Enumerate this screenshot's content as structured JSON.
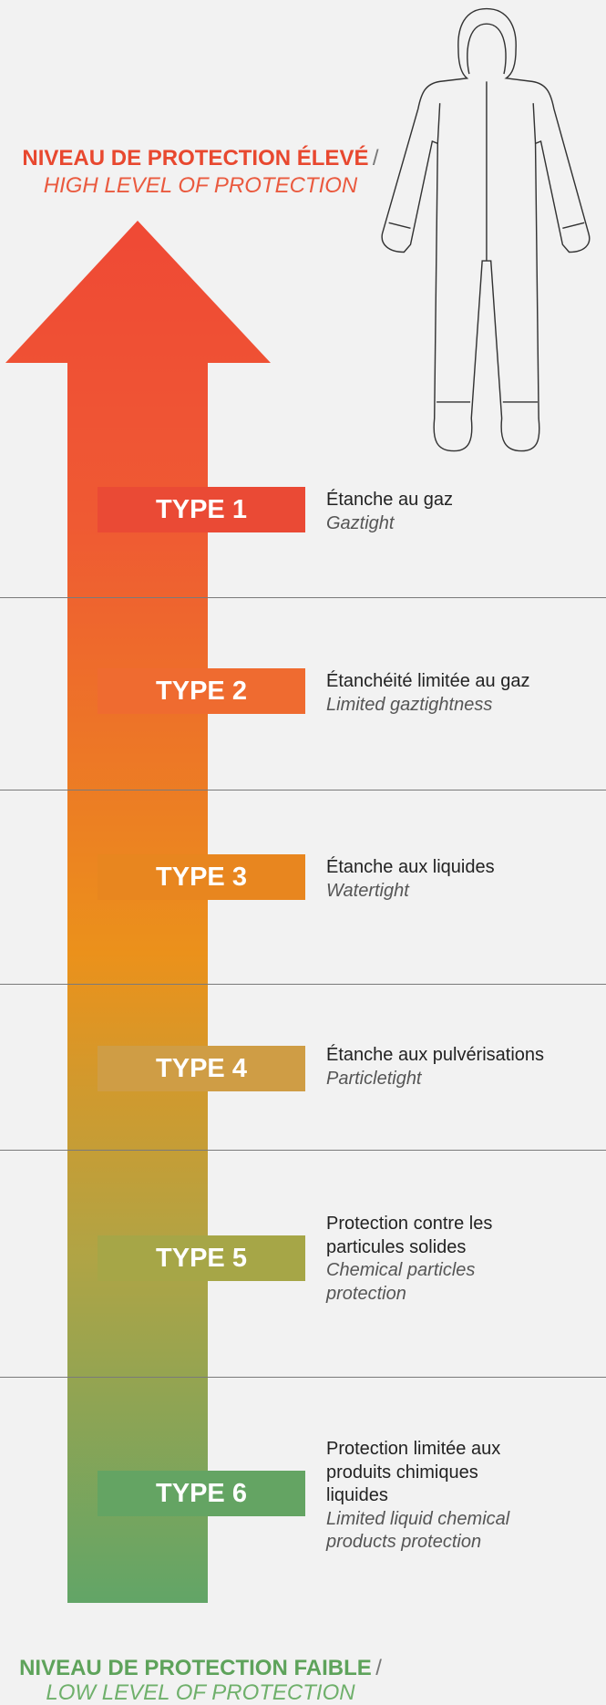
{
  "header": {
    "title": "NIVEAU DE PROTECTION ÉLEVÉ",
    "separator": "/",
    "subtitle": "HIGH LEVEL OF PROTECTION"
  },
  "types": [
    {
      "label": "TYPE 1",
      "fr_lines": [
        "Étanche au gaz"
      ],
      "en_lines": [
        "Gaztight"
      ]
    },
    {
      "label": "TYPE 2",
      "fr_lines": [
        "Étanchéité limitée au gaz"
      ],
      "en_lines": [
        "Limited gaztightness"
      ]
    },
    {
      "label": "TYPE 3",
      "fr_lines": [
        "Étanche aux liquides"
      ],
      "en_lines": [
        "Watertight"
      ]
    },
    {
      "label": "TYPE 4",
      "fr_lines": [
        "Étanche aux pulvérisations"
      ],
      "en_lines": [
        "Particletight"
      ]
    },
    {
      "label": "TYPE 5",
      "fr_lines": [
        "Protection contre les",
        "particules solides"
      ],
      "en_lines": [
        "Chemical particles",
        "protection"
      ]
    },
    {
      "label": "TYPE 6",
      "fr_lines": [
        "Protection limitée aux",
        "produits chimiques",
        "liquides"
      ],
      "en_lines": [
        "Limited liquid chemical",
        "products protection"
      ]
    }
  ],
  "footer": {
    "title": "NIVEAU DE PROTECTION FAIBLE",
    "separator": "/",
    "subtitle": "LOW LEVEL OF PROTECTION"
  }
}
